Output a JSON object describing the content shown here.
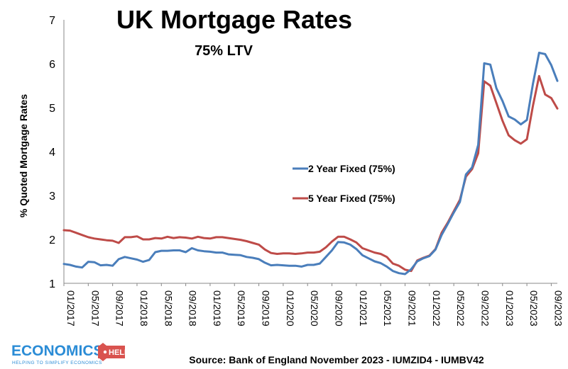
{
  "chart_data": {
    "type": "line",
    "title": "UK Mortgage Rates",
    "subtitle": "75% LTV",
    "xlabel": "",
    "ylabel": "% Quoted Mortgage Rates",
    "ylim": [
      1,
      7
    ],
    "yticks": [
      "1",
      "2",
      "3",
      "4",
      "5",
      "6",
      "7"
    ],
    "grid": false,
    "legend_position": "center-right",
    "x_start": "01/2017",
    "x_tick_labels": [
      "01/2017",
      "05/2017",
      "09/2017",
      "01/2018",
      "05/2018",
      "09/2018",
      "01/2019",
      "05/2019",
      "09/2019",
      "01/2020",
      "05/2020",
      "09/2020",
      "01/2021",
      "05/2021",
      "09/2021",
      "01/2022",
      "05/2022",
      "09/2022",
      "01/2023",
      "05/2023",
      "09/2023"
    ],
    "series": [
      {
        "name": "2 Year Fixed (75%)",
        "color": "#4a7ebb",
        "values": [
          1.44,
          1.42,
          1.38,
          1.36,
          1.49,
          1.48,
          1.41,
          1.42,
          1.4,
          1.55,
          1.6,
          1.57,
          1.54,
          1.49,
          1.53,
          1.71,
          1.74,
          1.74,
          1.75,
          1.75,
          1.71,
          1.8,
          1.75,
          1.73,
          1.72,
          1.7,
          1.7,
          1.66,
          1.65,
          1.64,
          1.6,
          1.58,
          1.55,
          1.47,
          1.41,
          1.42,
          1.41,
          1.4,
          1.4,
          1.38,
          1.42,
          1.42,
          1.45,
          1.6,
          1.75,
          1.94,
          1.93,
          1.88,
          1.78,
          1.64,
          1.57,
          1.5,
          1.46,
          1.38,
          1.28,
          1.23,
          1.21,
          1.32,
          1.5,
          1.57,
          1.62,
          1.77,
          2.1,
          2.35,
          2.61,
          2.85,
          3.48,
          3.64,
          4.15,
          6.01,
          5.98,
          5.44,
          5.15,
          4.8,
          4.73,
          4.62,
          4.72,
          5.55,
          6.25,
          6.22,
          5.97,
          5.61
        ]
      },
      {
        "name": "5 Year Fixed (75%)",
        "color": "#be4b48",
        "values": [
          2.21,
          2.2,
          2.15,
          2.1,
          2.05,
          2.02,
          2.0,
          1.98,
          1.97,
          1.92,
          2.05,
          2.05,
          2.07,
          2.0,
          2.0,
          2.03,
          2.02,
          2.06,
          2.03,
          2.05,
          2.04,
          2.02,
          2.06,
          2.03,
          2.02,
          2.05,
          2.05,
          2.03,
          2.01,
          1.99,
          1.96,
          1.92,
          1.88,
          1.77,
          1.69,
          1.67,
          1.68,
          1.68,
          1.67,
          1.68,
          1.7,
          1.7,
          1.72,
          1.82,
          1.95,
          2.06,
          2.06,
          2.0,
          1.93,
          1.8,
          1.75,
          1.7,
          1.67,
          1.6,
          1.45,
          1.4,
          1.31,
          1.28,
          1.52,
          1.58,
          1.63,
          1.78,
          2.15,
          2.38,
          2.64,
          2.9,
          3.43,
          3.6,
          3.96,
          5.6,
          5.5,
          5.1,
          4.7,
          4.37,
          4.26,
          4.18,
          4.28,
          5.05,
          5.72,
          5.3,
          5.22,
          4.98
        ]
      }
    ]
  },
  "source_text": "Source: Bank of England November 2023 - IUMZID4 - IUMBV42",
  "logo": {
    "word": "ECONOMICS",
    "badge": "HELP",
    "tagline": "HELPING TO SIMPLIFY ECONOMICS",
    "color": "#2b8cd6",
    "badge_color": "#d9534f"
  }
}
